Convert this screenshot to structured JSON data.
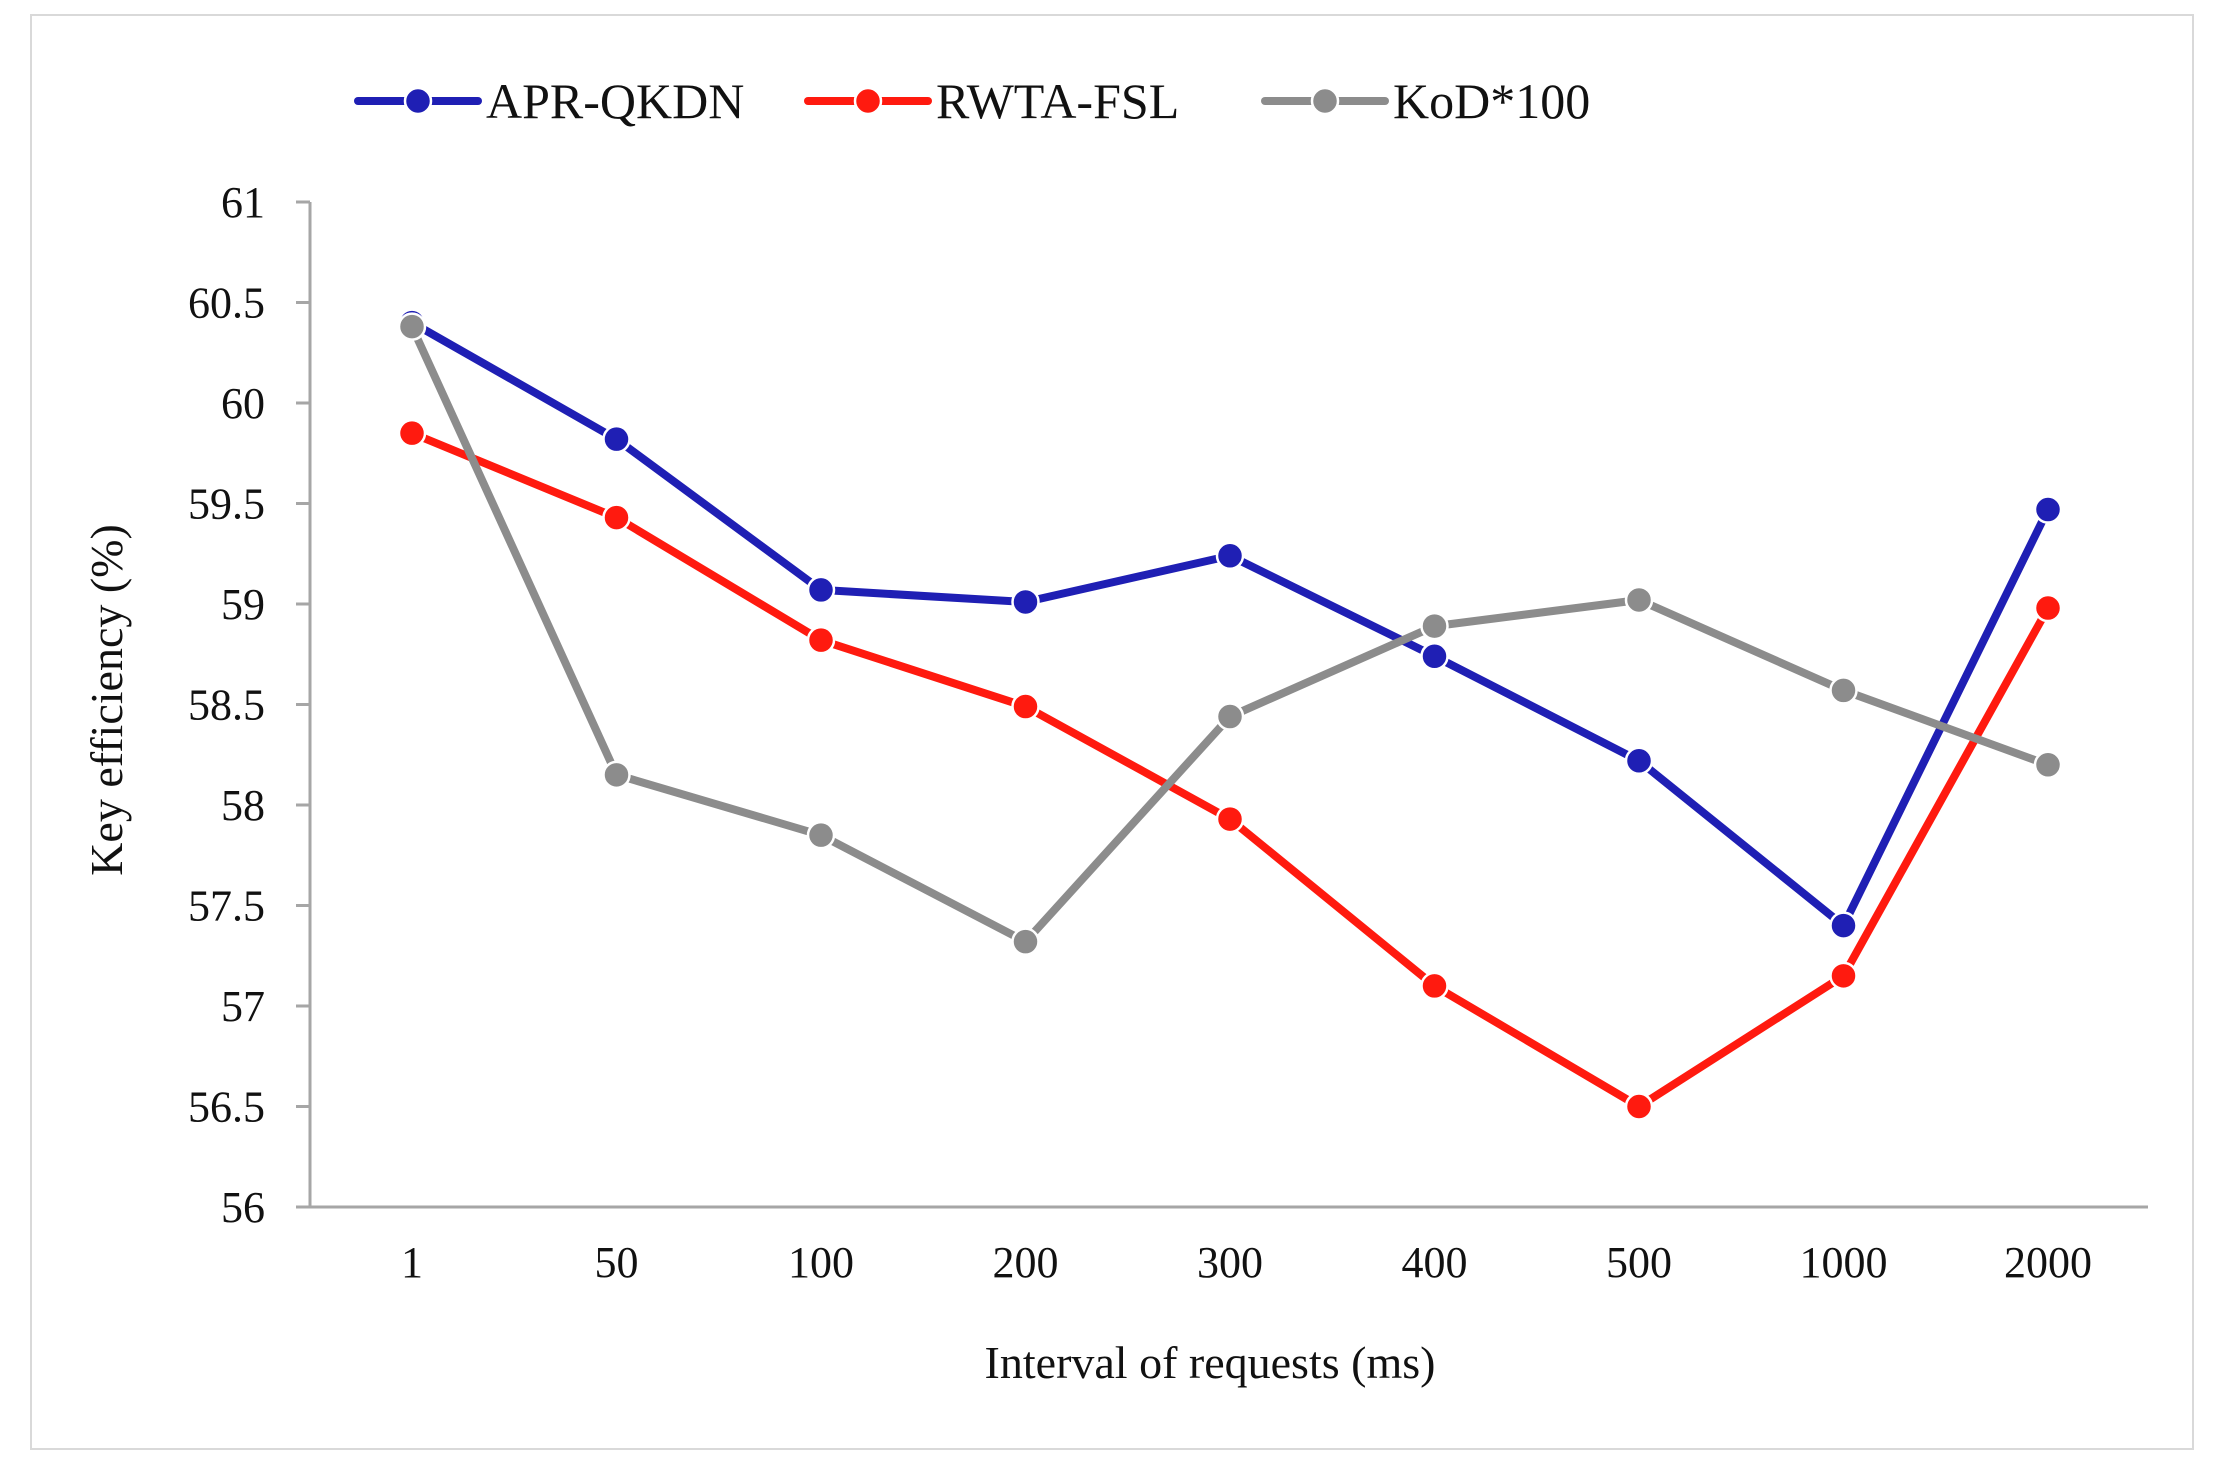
{
  "chart_data": {
    "type": "line",
    "title": "",
    "xlabel": "Interval of requests (ms)",
    "ylabel": "Key efficiency (%)",
    "categories": [
      "1",
      "50",
      "100",
      "200",
      "300",
      "400",
      "500",
      "1000",
      "2000"
    ],
    "ylim": [
      56,
      61
    ],
    "yticks": [
      56,
      56.5,
      57,
      57.5,
      58,
      58.5,
      59,
      59.5,
      60,
      60.5,
      61
    ],
    "grid": false,
    "legend_position": "top",
    "series": [
      {
        "name": "APR-QKDN",
        "color": "#1f1fb4",
        "values": [
          60.4,
          59.82,
          59.07,
          59.01,
          59.24,
          58.74,
          58.22,
          57.4,
          59.47
        ]
      },
      {
        "name": "RWTA-FSL",
        "color": "#ff1a0f",
        "values": [
          59.85,
          59.43,
          58.82,
          58.49,
          57.93,
          57.1,
          56.5,
          57.15,
          58.98
        ]
      },
      {
        "name": "KoD*100",
        "color": "#8c8c8c",
        "values": [
          60.38,
          58.15,
          57.85,
          57.32,
          58.44,
          58.89,
          59.02,
          58.57,
          58.2
        ]
      }
    ]
  }
}
